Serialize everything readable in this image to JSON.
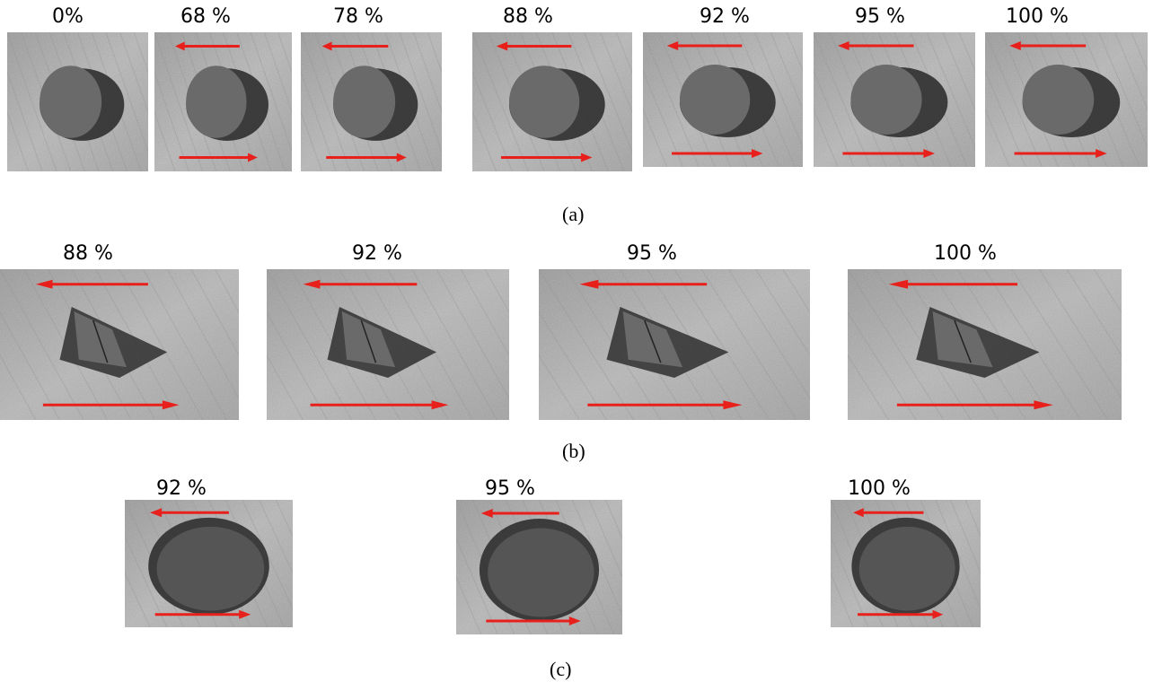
{
  "figure": {
    "rows": [
      {
        "caption": "(a)",
        "strain_series": "a",
        "panels": [
          {
            "label": "0%",
            "arrows": false
          },
          {
            "label": "68 %",
            "arrows": true
          },
          {
            "label": "78 %",
            "arrows": true
          },
          {
            "label": "88 %",
            "arrows": true
          },
          {
            "label": "92 %",
            "arrows": true
          },
          {
            "label": "95 %",
            "arrows": true
          },
          {
            "label": "100 %",
            "arrows": true
          }
        ]
      },
      {
        "caption": "(b)",
        "panels": [
          {
            "label": "88 %",
            "arrows": true
          },
          {
            "label": "92 %",
            "arrows": true
          },
          {
            "label": "95 %",
            "arrows": true
          },
          {
            "label": "100 %",
            "arrows": true
          }
        ]
      },
      {
        "caption": "(c)",
        "panels": [
          {
            "label": "92 %",
            "arrows": true
          },
          {
            "label": "95 %",
            "arrows": true
          },
          {
            "label": "100 %",
            "arrows": true
          }
        ]
      }
    ],
    "colors": {
      "arrow": "#e8201c",
      "sem_background": "#a9a9a9",
      "cavity": "#2f2f2f",
      "particle": "#6a6a6a"
    }
  }
}
